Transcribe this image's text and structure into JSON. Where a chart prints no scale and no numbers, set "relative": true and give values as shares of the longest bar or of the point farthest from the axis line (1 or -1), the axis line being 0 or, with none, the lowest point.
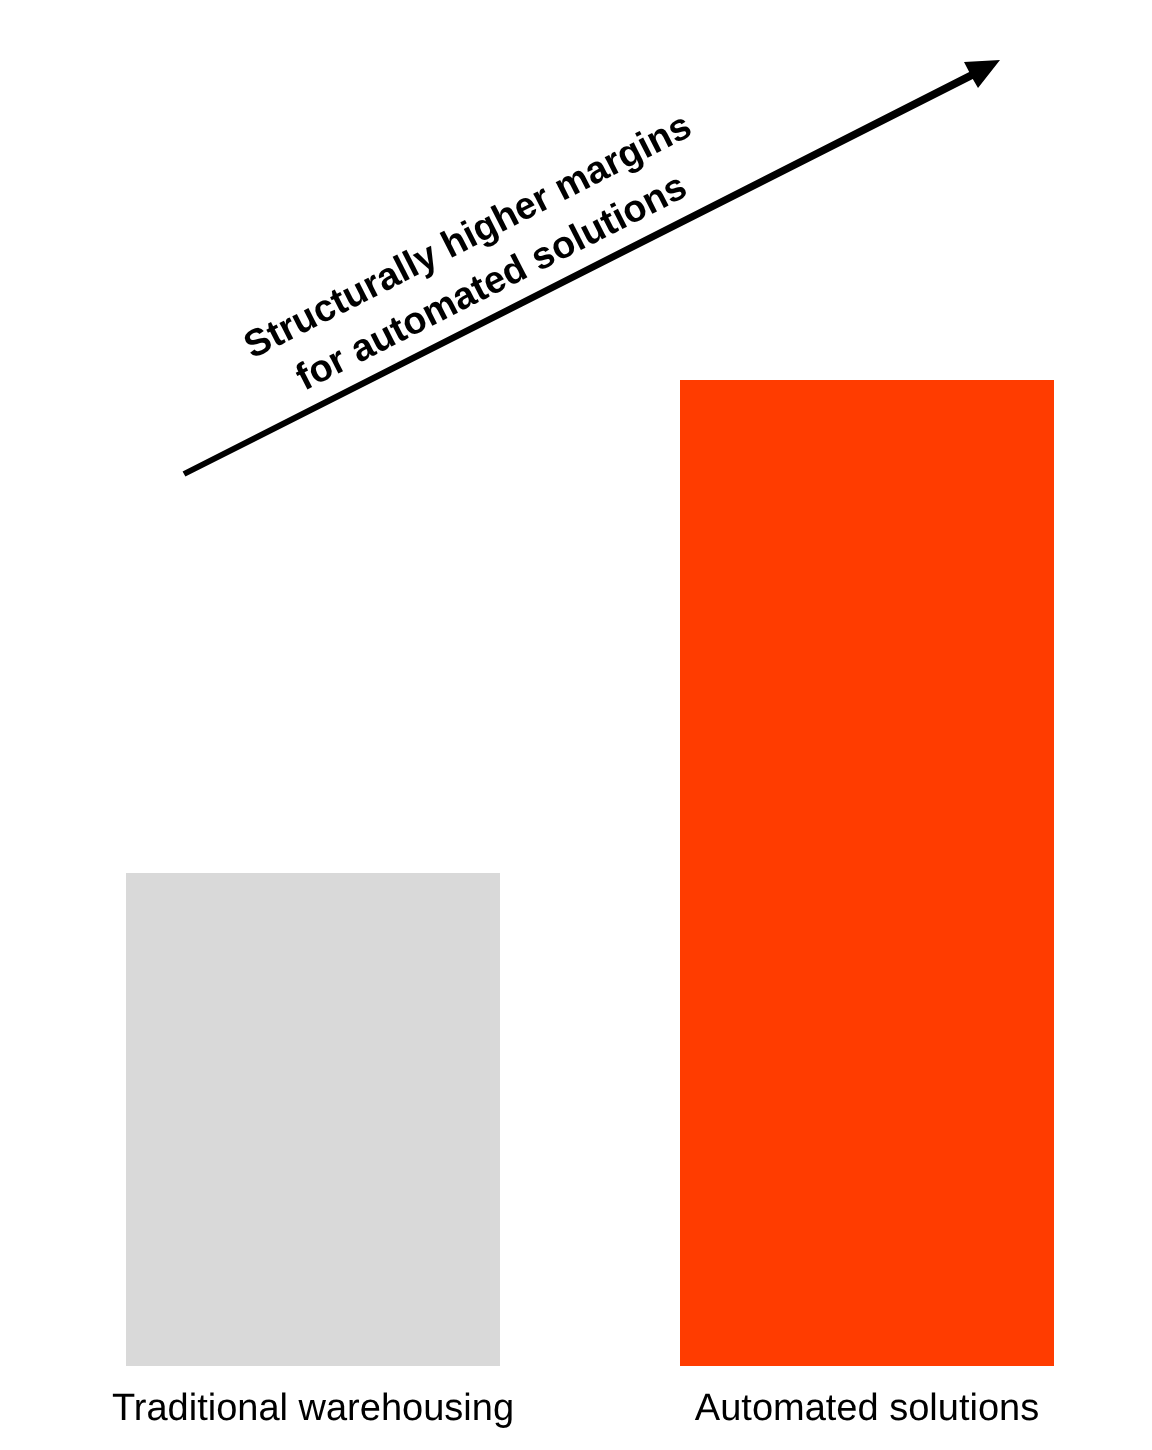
{
  "chart_data": {
    "type": "bar",
    "relative": true,
    "categories": [
      "Traditional warehousing",
      "Automated solutions"
    ],
    "colors": [
      "#d9d9d9",
      "#ff3c00"
    ],
    "values": [
      0.5,
      1
    ],
    "annotations": [
      "Structurally higher margins\nfor automated solutions"
    ]
  }
}
